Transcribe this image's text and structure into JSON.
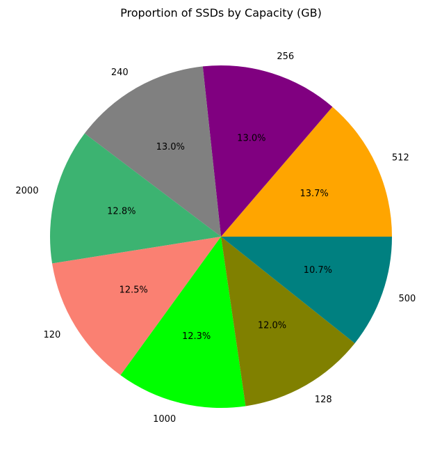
{
  "chart_data": {
    "type": "pie",
    "title": "Proportion of SSDs by Capacity (GB)",
    "start_angle_deg": 0,
    "direction": "counterclockwise",
    "slices": [
      {
        "label": "512",
        "value": 13.7,
        "pct_text": "13.7%",
        "color": "#FFA500"
      },
      {
        "label": "256",
        "value": 13.0,
        "pct_text": "13.0%",
        "color": "#800080"
      },
      {
        "label": "240",
        "value": 13.0,
        "pct_text": "13.0%",
        "color": "#808080"
      },
      {
        "label": "2000",
        "value": 12.8,
        "pct_text": "12.8%",
        "color": "#3CB371"
      },
      {
        "label": "120",
        "value": 12.5,
        "pct_text": "12.5%",
        "color": "#FA8072"
      },
      {
        "label": "1000",
        "value": 12.3,
        "pct_text": "12.3%",
        "color": "#00FF00"
      },
      {
        "label": "128",
        "value": 12.0,
        "pct_text": "12.0%",
        "color": "#808000"
      },
      {
        "label": "500",
        "value": 10.7,
        "pct_text": "10.7%",
        "color": "#008080"
      }
    ]
  }
}
